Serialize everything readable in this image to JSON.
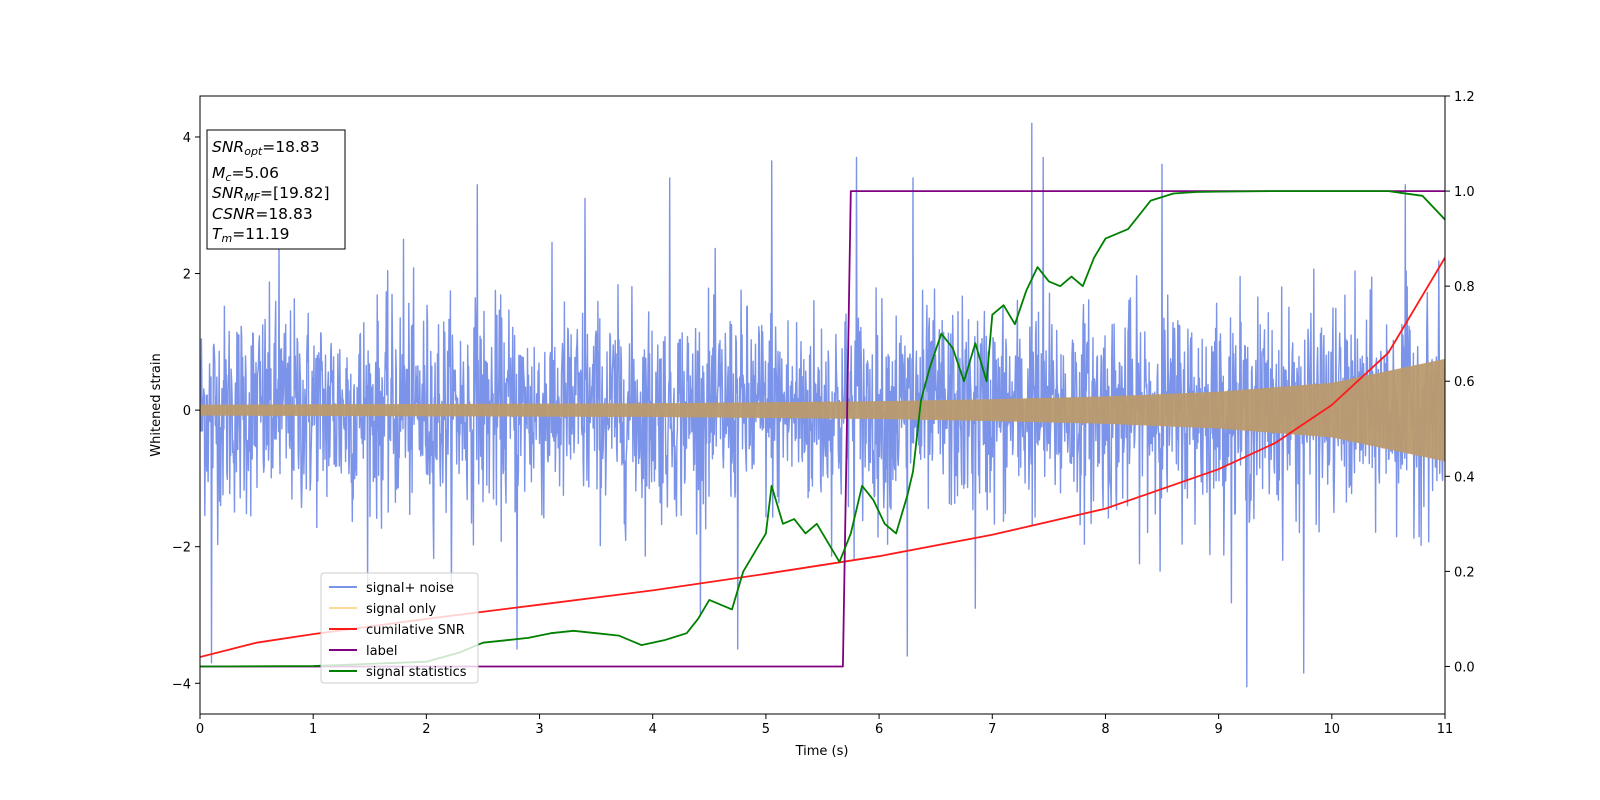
{
  "chart_data": {
    "type": "line",
    "xlabel": "Time (s)",
    "ylabel": "Whitened strain",
    "xlim": [
      0,
      11
    ],
    "ylim_left": [
      -4.45,
      4.6
    ],
    "ylim_right": [
      -0.1,
      1.2
    ],
    "x_ticks": [
      0,
      1,
      2,
      3,
      4,
      5,
      6,
      7,
      8,
      9,
      10,
      11
    ],
    "y_ticks_left": [
      -4,
      -2,
      0,
      2,
      4
    ],
    "y_ticks_right": [
      0.0,
      0.2,
      0.4,
      0.6,
      0.8,
      1.0,
      1.2
    ],
    "grid": false,
    "legend_position": "lower-left",
    "annotation": {
      "lines": [
        {
          "var": "SNR",
          "sub": "opt",
          "rest": "=18.83"
        },
        {
          "var": "M",
          "sub": "c",
          "rest": "=5.06"
        },
        {
          "var": "SNR",
          "sub": "MF",
          "rest": "=[19.82]"
        },
        {
          "var": "CSNR",
          "sub": "",
          "rest": "=18.83"
        },
        {
          "var": "T",
          "sub": "m",
          "rest": "=11.19"
        }
      ]
    },
    "series": [
      {
        "name": "signal+ noise",
        "axis": "left",
        "color": "#7b93e8",
        "kind": "noise",
        "sigma": 0.75,
        "spikes_x": [
          0.1,
          0.7,
          1.8,
          2.45,
          2.8,
          3.4,
          4.15,
          4.75,
          5.05,
          5.8,
          6.25,
          6.3,
          6.85,
          7.35,
          7.45,
          8.5,
          9.25,
          9.75,
          10.65
        ],
        "spikes_y": [
          -3.7,
          2.55,
          2.5,
          3.3,
          -3.5,
          3.1,
          3.4,
          -3.5,
          3.65,
          3.7,
          -3.6,
          3.4,
          -2.9,
          4.2,
          3.7,
          3.6,
          -4.05,
          -3.85,
          3.3
        ]
      },
      {
        "name": "signal only",
        "axis": "left",
        "color": "#bb9a6e",
        "kind": "chirp_envelope",
        "envelope_x": [
          0,
          2,
          4,
          6,
          7,
          8,
          9,
          10,
          11
        ],
        "envelope_y": [
          0.08,
          0.09,
          0.1,
          0.13,
          0.16,
          0.2,
          0.27,
          0.4,
          0.75
        ]
      },
      {
        "name": "cumilative SNR",
        "axis": "right",
        "color": "#ff1a1a",
        "x": [
          0,
          0.5,
          1,
          2,
          3,
          4,
          5,
          6,
          7,
          8,
          9,
          9.5,
          10,
          10.5,
          11
        ],
        "y": [
          0.02,
          0.05,
          0.068,
          0.1,
          0.13,
          0.16,
          0.195,
          0.232,
          0.277,
          0.332,
          0.415,
          0.47,
          0.55,
          0.66,
          0.86
        ]
      },
      {
        "name": "label",
        "axis": "right",
        "color": "#800080",
        "x": [
          0,
          5.68,
          5.75,
          11
        ],
        "y": [
          0,
          0,
          1,
          1
        ]
      },
      {
        "name": "signal statistics",
        "axis": "right",
        "color": "#008000",
        "x": [
          0,
          1,
          2,
          2.3,
          2.5,
          2.7,
          2.9,
          3.1,
          3.3,
          3.5,
          3.7,
          3.9,
          4.1,
          4.3,
          4.4,
          4.5,
          4.6,
          4.7,
          4.8,
          4.9,
          5.0,
          5.05,
          5.15,
          5.25,
          5.35,
          5.45,
          5.55,
          5.65,
          5.75,
          5.85,
          5.95,
          6.05,
          6.15,
          6.25,
          6.3,
          6.37,
          6.45,
          6.55,
          6.65,
          6.75,
          6.85,
          6.95,
          7.0,
          7.1,
          7.2,
          7.3,
          7.4,
          7.5,
          7.6,
          7.7,
          7.8,
          7.9,
          8.0,
          8.2,
          8.4,
          8.6,
          8.8,
          9.0,
          9.5,
          10.0,
          10.5,
          10.8,
          11.0
        ],
        "y": [
          0.0,
          0.001,
          0.01,
          0.03,
          0.05,
          0.055,
          0.06,
          0.07,
          0.075,
          0.07,
          0.065,
          0.045,
          0.055,
          0.07,
          0.1,
          0.14,
          0.13,
          0.12,
          0.2,
          0.24,
          0.28,
          0.38,
          0.3,
          0.31,
          0.28,
          0.3,
          0.26,
          0.22,
          0.28,
          0.38,
          0.35,
          0.3,
          0.28,
          0.36,
          0.41,
          0.56,
          0.63,
          0.7,
          0.67,
          0.6,
          0.68,
          0.6,
          0.74,
          0.76,
          0.72,
          0.79,
          0.84,
          0.81,
          0.8,
          0.82,
          0.8,
          0.86,
          0.9,
          0.92,
          0.98,
          0.995,
          0.998,
          0.999,
          1.0,
          1.0,
          1.0,
          0.99,
          0.94
        ]
      }
    ]
  }
}
